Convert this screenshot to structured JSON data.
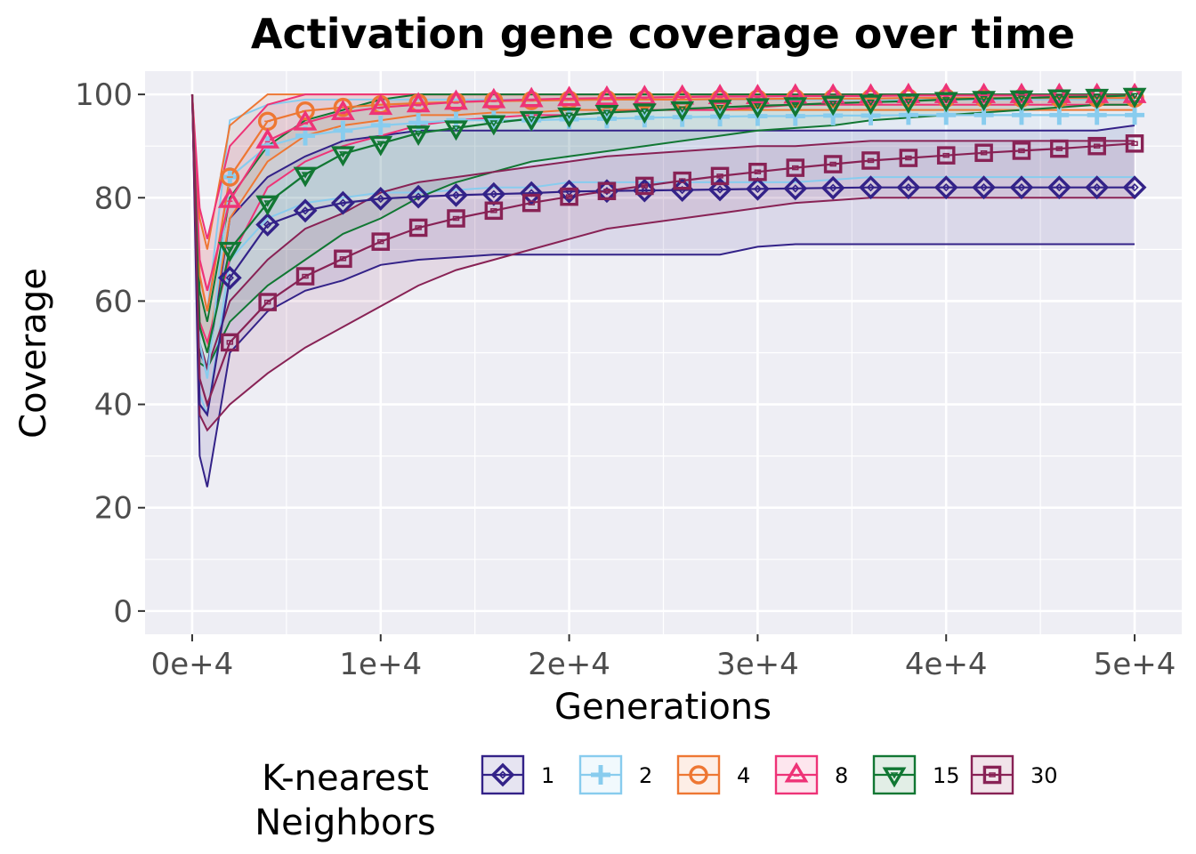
{
  "chart_data": {
    "type": "line",
    "title": "Activation gene coverage over time",
    "xlabel": "Generations",
    "ylabel": "Coverage",
    "xlim": [
      -2500,
      52500
    ],
    "ylim": [
      -4.5,
      104.5
    ],
    "x_ticks": [
      0,
      10000,
      20000,
      30000,
      40000,
      50000
    ],
    "x_tick_labels": [
      "0e+4",
      "1e+4",
      "2e+4",
      "3e+4",
      "4e+4",
      "5e+4"
    ],
    "y_ticks": [
      0,
      20,
      40,
      60,
      80,
      100
    ],
    "y_tick_labels": [
      "0",
      "20",
      "40",
      "60",
      "80",
      "100"
    ],
    "grid": true,
    "legend": {
      "title": "K-nearest\nNeighbors",
      "position": "bottom"
    },
    "x": [
      0,
      400,
      800,
      2000,
      4000,
      6000,
      8000,
      10000,
      12000,
      14000,
      16000,
      18000,
      20000,
      22000,
      24000,
      26000,
      28000,
      30000,
      32000,
      34000,
      36000,
      38000,
      40000,
      42000,
      44000,
      46000,
      48000,
      50000
    ],
    "series": [
      {
        "name": "1",
        "color": "#332288",
        "marker": "diamond",
        "values": [
          100,
          40,
          38,
          64.5,
          74.8,
          77.5,
          79,
          79.8,
          80.2,
          80.5,
          80.7,
          80.9,
          81.2,
          81.3,
          81.4,
          81.5,
          81.6,
          81.7,
          81.8,
          81.9,
          82,
          82,
          82,
          82,
          82,
          82,
          82,
          82
        ],
        "lower": [
          100,
          30,
          24,
          50,
          58,
          62,
          64,
          67,
          68,
          68.5,
          69,
          69,
          69,
          69,
          69,
          69,
          69,
          70.5,
          71,
          71,
          71,
          71,
          71,
          71,
          71,
          71,
          71,
          71
        ],
        "upper": [
          100,
          50,
          47,
          76,
          84,
          88,
          91,
          92,
          93,
          93,
          93,
          93,
          93,
          93,
          93,
          93,
          93,
          93,
          93,
          93,
          93,
          93,
          93,
          93,
          93,
          93,
          93,
          94
        ]
      },
      {
        "name": "2",
        "color": "#88CCEE",
        "marker": "plus",
        "values": [
          100,
          52,
          45,
          84,
          90,
          92,
          93,
          94,
          94.5,
          95,
          95,
          95,
          95.2,
          95.3,
          95.5,
          95.6,
          95.7,
          95.8,
          95.8,
          95.9,
          95.9,
          96,
          96,
          96,
          96,
          96,
          96,
          96
        ],
        "lower": [
          100,
          42,
          38,
          68,
          76,
          79,
          80,
          81,
          81,
          81.5,
          82,
          82,
          83,
          83,
          83,
          83,
          83,
          83,
          83,
          83.5,
          84,
          84,
          84,
          84,
          84,
          84,
          84,
          84
        ],
        "upper": [
          100,
          65,
          58,
          95,
          98,
          99,
          99,
          99,
          99,
          99,
          99,
          99,
          99,
          99,
          99,
          99,
          99,
          99,
          99,
          99,
          99,
          99,
          99,
          99,
          99,
          99,
          99,
          99
        ]
      },
      {
        "name": "4",
        "color": "#EE7733",
        "marker": "circle",
        "values": [
          100,
          65,
          58,
          84,
          94.8,
          96.8,
          97.5,
          98,
          98.3,
          98.5,
          98.7,
          98.8,
          98.9,
          99,
          99,
          99,
          99.1,
          99.1,
          99.2,
          99.2,
          99.2,
          99.3,
          99.3,
          99.3,
          99.3,
          99.3,
          99.3,
          99.3
        ],
        "lower": [
          100,
          55,
          50,
          76,
          87,
          92,
          94,
          95,
          96,
          96,
          96.5,
          96.5,
          97,
          97,
          97,
          97,
          97,
          97,
          97,
          97,
          97,
          97,
          97,
          97,
          97,
          97,
          97,
          97
        ],
        "upper": [
          100,
          76,
          70,
          94,
          100,
          100,
          100,
          100,
          100,
          100,
          100,
          100,
          100,
          100,
          100,
          100,
          100,
          100,
          100,
          100,
          100,
          100,
          100,
          100,
          100,
          100,
          100,
          100
        ]
      },
      {
        "name": "8",
        "color": "#EE3377",
        "marker": "triangle-up",
        "values": [
          100,
          68,
          62,
          79.5,
          91,
          94.5,
          96.5,
          97.5,
          98,
          98.5,
          98.8,
          99,
          99.2,
          99.3,
          99.4,
          99.5,
          99.6,
          99.6,
          99.7,
          99.7,
          99.7,
          99.8,
          99.8,
          99.8,
          99.8,
          99.8,
          99.8,
          99.8
        ],
        "lower": [
          100,
          56,
          52,
          68,
          82,
          87,
          90,
          92,
          94,
          95,
          95.5,
          96,
          96,
          96.5,
          97,
          97,
          97,
          97.5,
          98,
          98,
          98,
          98,
          98,
          98,
          98,
          98,
          98,
          98
        ],
        "upper": [
          100,
          78,
          72,
          90,
          98,
          100,
          100,
          100,
          100,
          100,
          100,
          100,
          100,
          100,
          100,
          100,
          100,
          100,
          100,
          100,
          100,
          100,
          100,
          100,
          100,
          100,
          100,
          100
        ]
      },
      {
        "name": "15",
        "color": "#117733",
        "marker": "triangle-down",
        "values": [
          100,
          55,
          50,
          70,
          79,
          84.5,
          88.5,
          90.5,
          92.5,
          93.5,
          94.5,
          95.3,
          96,
          96.5,
          96.8,
          97.2,
          97.5,
          97.8,
          98,
          98.3,
          98.5,
          98.7,
          99,
          99.2,
          99.3,
          99.5,
          99.6,
          99.8
        ],
        "lower": [
          100,
          48,
          47,
          56,
          63,
          68,
          73,
          76,
          80,
          83,
          85,
          87,
          88,
          89,
          90,
          91,
          92,
          93,
          93.5,
          94,
          95,
          95.5,
          96,
          96.5,
          97,
          97.5,
          98,
          98
        ],
        "upper": [
          100,
          62,
          56,
          80,
          90,
          95,
          97,
          99,
          100,
          100,
          100,
          100,
          100,
          100,
          100,
          100,
          100,
          100,
          100,
          100,
          100,
          100,
          100,
          100,
          100,
          100,
          100,
          100
        ]
      },
      {
        "name": "30",
        "color": "#882255",
        "marker": "square",
        "values": [
          100,
          45,
          40,
          52,
          59.8,
          64.8,
          68.2,
          71.5,
          74.2,
          76,
          77.5,
          79,
          80.2,
          81.3,
          82.3,
          83.3,
          84.2,
          85,
          85.8,
          86.5,
          87.2,
          87.7,
          88.2,
          88.7,
          89.1,
          89.5,
          90,
          90.5
        ],
        "lower": [
          100,
          38,
          35,
          40,
          46,
          51,
          55,
          59,
          63,
          66,
          68,
          70,
          72,
          74,
          75,
          76,
          77,
          78,
          79,
          79.5,
          80,
          80,
          80,
          80,
          80,
          80,
          80,
          80
        ],
        "upper": [
          100,
          52,
          47,
          60,
          68,
          74,
          77,
          81,
          83,
          84,
          85,
          86,
          87,
          88,
          88.5,
          89,
          89.5,
          90,
          90,
          90.5,
          91,
          91,
          91,
          91,
          91,
          91,
          91,
          91
        ]
      }
    ]
  }
}
